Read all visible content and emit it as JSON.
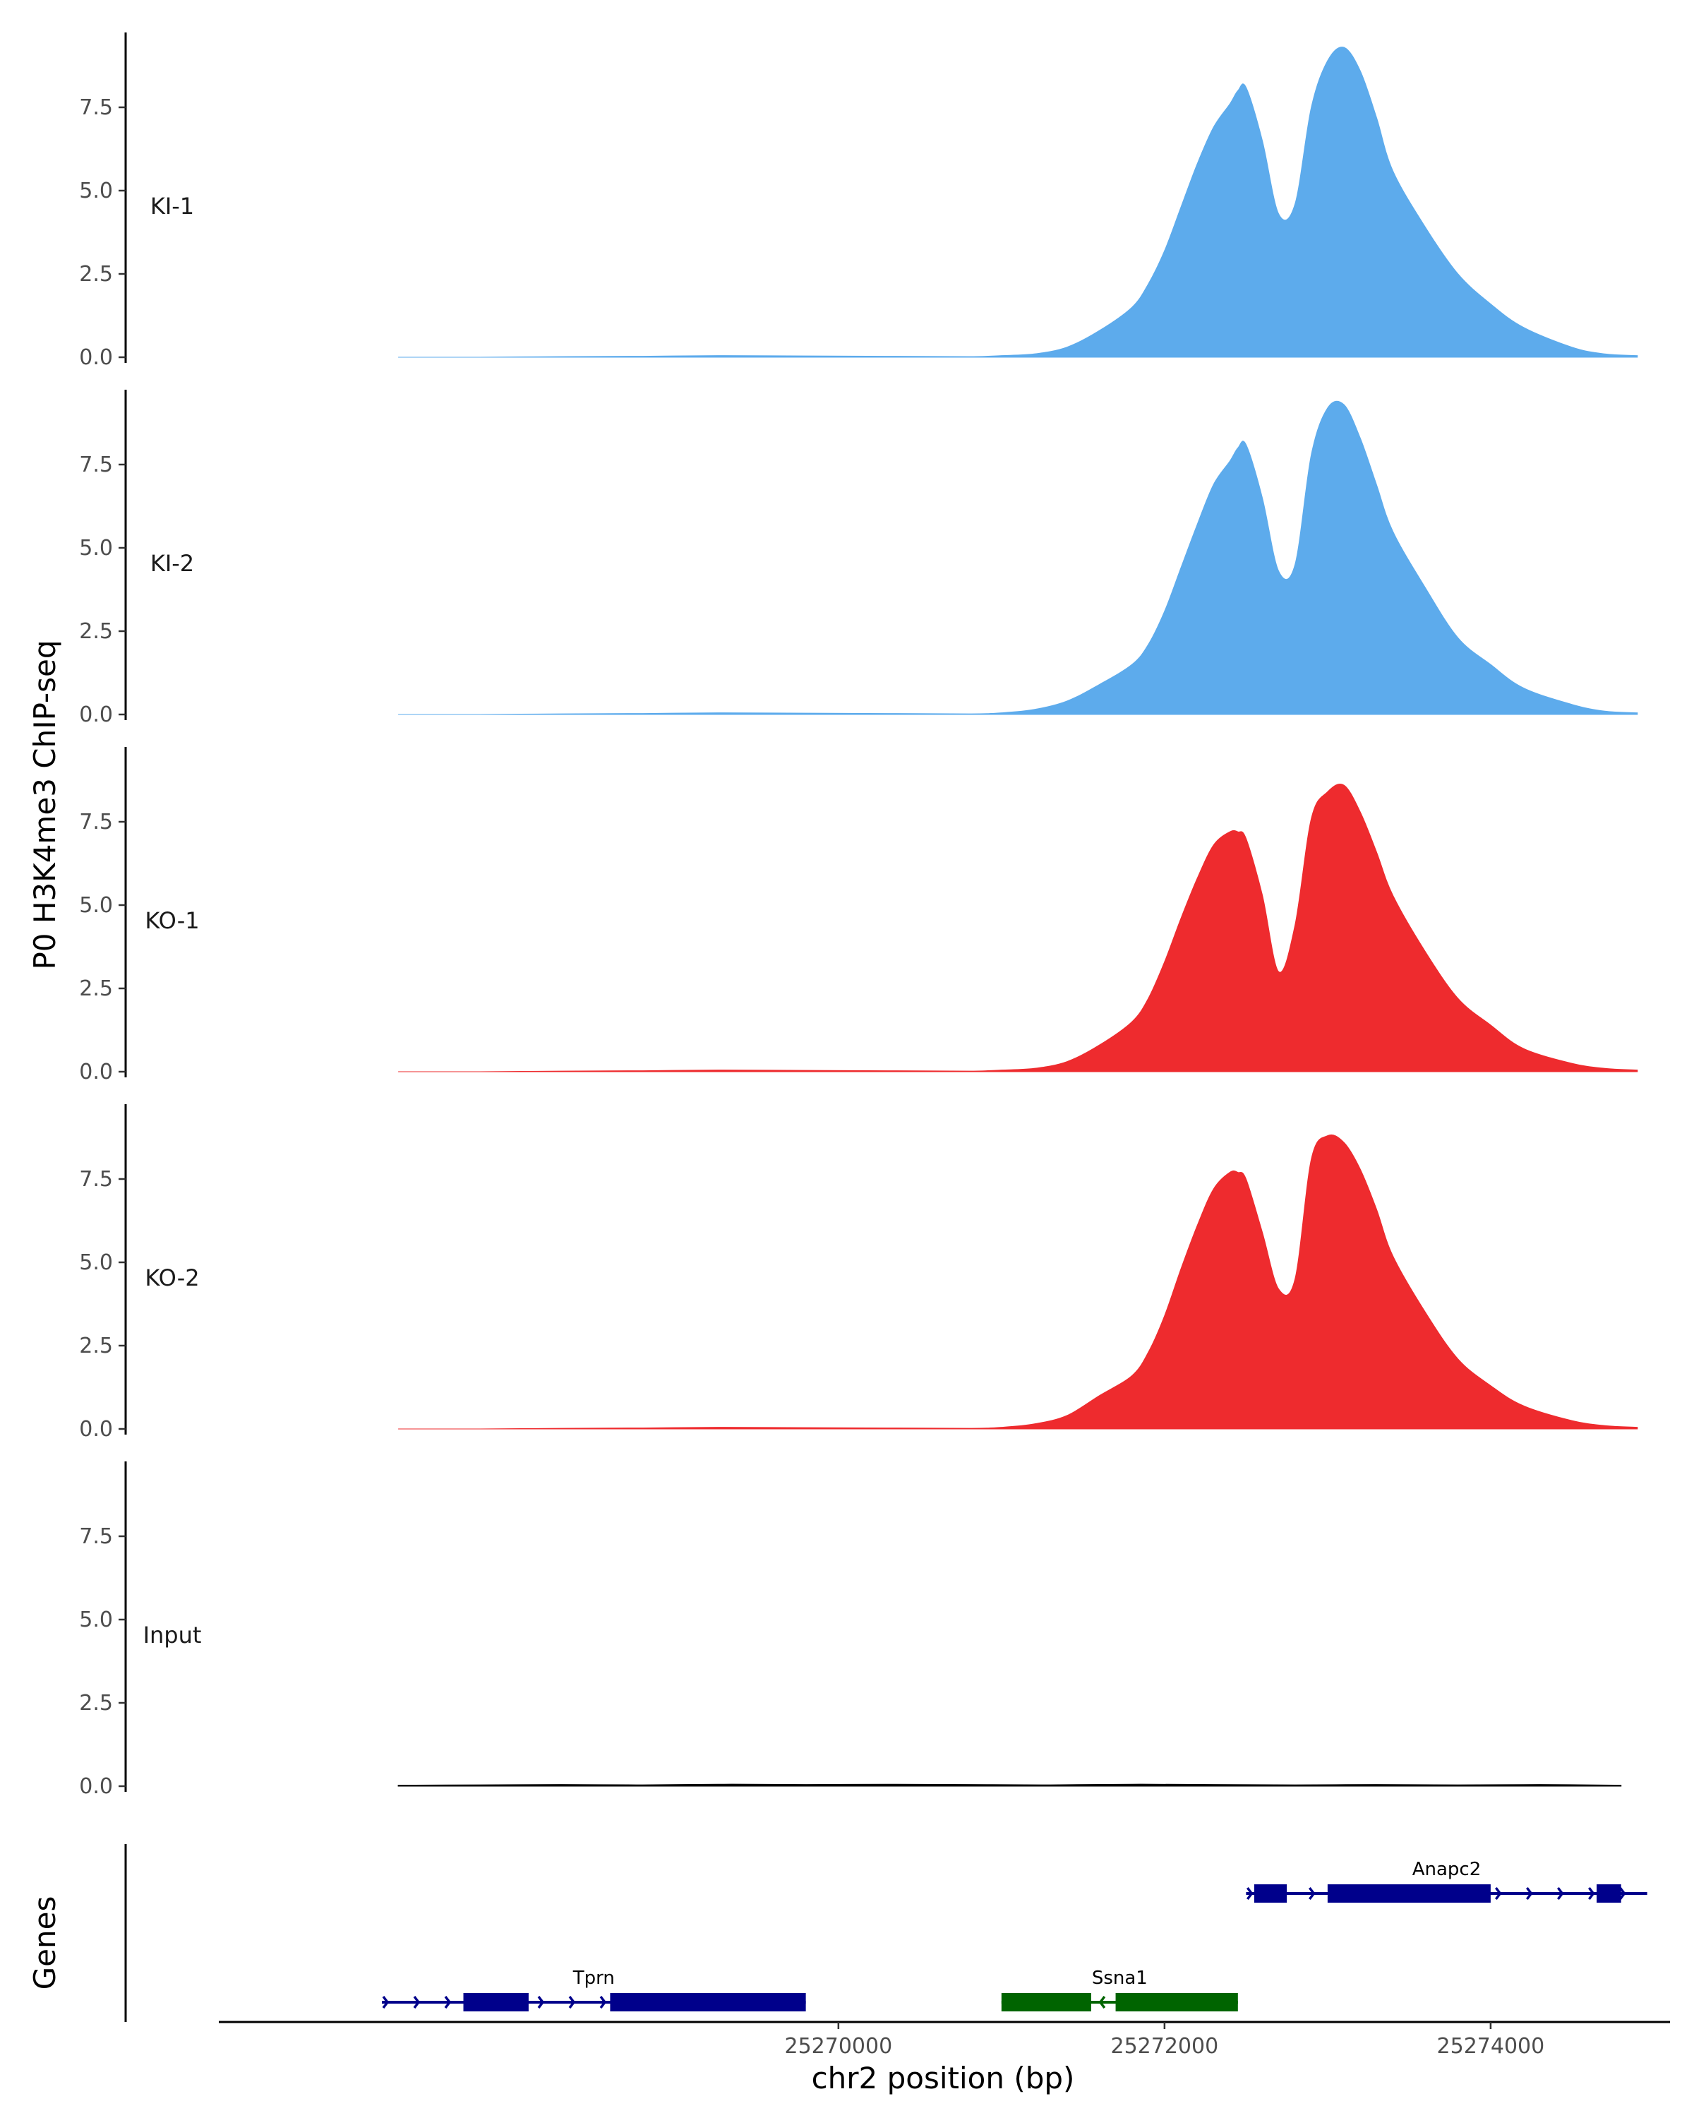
{
  "chart_data": {
    "type": "area",
    "title": "",
    "ylabel": "P0 H3K4me3 ChIP-seq",
    "xlabel": "chr2 position (bp)",
    "genes_label": "Genes",
    "xlim": [
      25266200,
      25275100
    ],
    "ylim": [
      0,
      9.7
    ],
    "y_ticks": [
      0,
      2.5,
      5,
      7.5
    ],
    "y_tick_labels": [
      "0.0",
      "2.5",
      "5.0",
      "7.5"
    ],
    "x_ticks": [
      25270000,
      25272000,
      25274000
    ],
    "x_tick_labels": [
      "25270000",
      "25272000",
      "25274000"
    ],
    "colors": {
      "KI": "#5dabec",
      "KO": "#ee2b2e",
      "Input": "#000000",
      "gene_plus": "#00008b",
      "gene_minus": "#006400"
    },
    "tracks": [
      {
        "name": "KI-1",
        "color": "#5dabec",
        "x": [
          25267300,
          25267800,
          25268300,
          25268800,
          25269300,
          25269800,
          25270300,
          25270800,
          25271000,
          25271200,
          25271400,
          25271600,
          25271800,
          25271900,
          25272000,
          25272100,
          25272200,
          25272300,
          25272400,
          25272450,
          25272500,
          25272600,
          25272700,
          25272800,
          25272900,
          25273000,
          25273100,
          25273200,
          25273300,
          25273400,
          25273600,
          25273800,
          25274000,
          25274200,
          25274500,
          25274700,
          25274900
        ],
        "values": [
          0,
          0,
          0.02,
          0.03,
          0.05,
          0.04,
          0.03,
          0.02,
          0.05,
          0.1,
          0.3,
          0.8,
          1.5,
          2.2,
          3.2,
          4.5,
          5.8,
          6.9,
          7.6,
          8.0,
          8.1,
          6.5,
          4.3,
          4.6,
          7.5,
          8.9,
          9.3,
          8.6,
          7.2,
          5.6,
          3.9,
          2.5,
          1.6,
          0.9,
          0.3,
          0.1,
          0.05
        ]
      },
      {
        "name": "KI-2",
        "color": "#5dabec",
        "x": [
          25267300,
          25267800,
          25268300,
          25268800,
          25269300,
          25269800,
          25270300,
          25270800,
          25271000,
          25271200,
          25271400,
          25271600,
          25271800,
          25271900,
          25272000,
          25272100,
          25272200,
          25272300,
          25272400,
          25272450,
          25272500,
          25272600,
          25272700,
          25272800,
          25272900,
          25273000,
          25273100,
          25273200,
          25273300,
          25273400,
          25273600,
          25273800,
          25274000,
          25274200,
          25274500,
          25274700,
          25274900
        ],
        "values": [
          0,
          0,
          0.02,
          0.03,
          0.05,
          0.04,
          0.03,
          0.02,
          0.05,
          0.15,
          0.4,
          0.9,
          1.5,
          2.1,
          3.1,
          4.4,
          5.7,
          6.9,
          7.6,
          8.0,
          8.1,
          6.5,
          4.3,
          4.5,
          7.8,
          9.2,
          9.3,
          8.3,
          6.9,
          5.5,
          3.8,
          2.3,
          1.5,
          0.8,
          0.3,
          0.1,
          0.05
        ]
      },
      {
        "name": "KO-1",
        "color": "#ee2b2e",
        "x": [
          25267300,
          25267800,
          25268300,
          25268800,
          25269300,
          25269800,
          25270300,
          25270800,
          25271000,
          25271200,
          25271400,
          25271600,
          25271800,
          25271900,
          25272000,
          25272100,
          25272200,
          25272300,
          25272400,
          25272450,
          25272500,
          25272600,
          25272700,
          25272800,
          25272900,
          25273000,
          25273100,
          25273200,
          25273300,
          25273400,
          25273600,
          25273800,
          25274000,
          25274200,
          25274500,
          25274700,
          25274900
        ],
        "values": [
          0,
          0,
          0.02,
          0.03,
          0.05,
          0.04,
          0.03,
          0.02,
          0.05,
          0.1,
          0.3,
          0.8,
          1.5,
          2.2,
          3.3,
          4.6,
          5.8,
          6.8,
          7.2,
          7.2,
          7.0,
          5.3,
          3.0,
          4.4,
          7.6,
          8.4,
          8.6,
          7.8,
          6.6,
          5.3,
          3.6,
          2.2,
          1.4,
          0.7,
          0.25,
          0.1,
          0.05
        ]
      },
      {
        "name": "KO-2",
        "color": "#ee2b2e",
        "x": [
          25267300,
          25267800,
          25268300,
          25268800,
          25269300,
          25269800,
          25270300,
          25270800,
          25271000,
          25271200,
          25271400,
          25271600,
          25271800,
          25271900,
          25272000,
          25272100,
          25272200,
          25272300,
          25272400,
          25272450,
          25272500,
          25272600,
          25272700,
          25272800,
          25272900,
          25273000,
          25273100,
          25273200,
          25273300,
          25273400,
          25273600,
          25273800,
          25274000,
          25274200,
          25274500,
          25274700,
          25274900
        ],
        "values": [
          0,
          0,
          0.02,
          0.03,
          0.05,
          0.04,
          0.03,
          0.02,
          0.05,
          0.15,
          0.4,
          1.0,
          1.6,
          2.3,
          3.4,
          4.8,
          6.1,
          7.2,
          7.7,
          7.7,
          7.5,
          5.9,
          4.2,
          4.5,
          8.1,
          8.8,
          8.6,
          7.8,
          6.6,
          5.2,
          3.5,
          2.1,
          1.3,
          0.7,
          0.25,
          0.1,
          0.05
        ]
      },
      {
        "name": "Input",
        "color": "#000000",
        "x": [
          25267300,
          25267800,
          25268300,
          25268800,
          25269300,
          25269800,
          25270300,
          25270800,
          25271300,
          25271800,
          25272300,
          25272800,
          25273300,
          25273800,
          25274300,
          25274800
        ],
        "values": [
          0.03,
          0.04,
          0.05,
          0.04,
          0.06,
          0.05,
          0.06,
          0.05,
          0.04,
          0.06,
          0.05,
          0.04,
          0.05,
          0.04,
          0.05,
          0.03
        ]
      }
    ],
    "genes": [
      {
        "name": "Tprn",
        "strand": "+",
        "color": "#00008b",
        "row": 1,
        "start": 25267200,
        "end": 25269800,
        "exons": [
          [
            25267700,
            25268100
          ],
          [
            25268600,
            25269800
          ]
        ]
      },
      {
        "name": "Ssna1",
        "strand": "-",
        "color": "#006400",
        "row": 1,
        "start": 25271000,
        "end": 25272450,
        "exons": [
          [
            25271000,
            25271550
          ],
          [
            25271700,
            25272450
          ]
        ]
      },
      {
        "name": "Anapc2",
        "strand": "+",
        "color": "#00008b",
        "row": 0,
        "start": 25272500,
        "end": 25274960,
        "exons": [
          [
            25272550,
            25272750
          ],
          [
            25273000,
            25274000
          ],
          [
            25274650,
            25274800
          ]
        ]
      }
    ]
  }
}
